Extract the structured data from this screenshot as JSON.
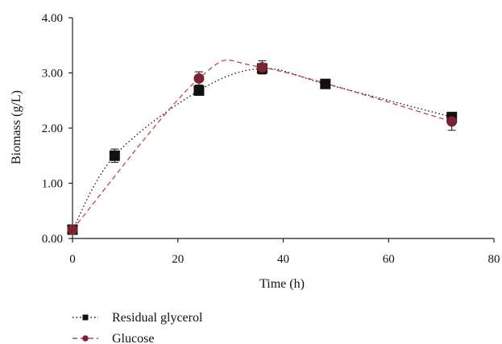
{
  "chart_data": {
    "type": "scatter",
    "xlabel": "Time (h)",
    "ylabel": "Biomass (g/L)",
    "xlim": [
      0,
      80
    ],
    "ylim": [
      0,
      4
    ],
    "x_ticks": [
      "0",
      "20",
      "40",
      "60",
      "80"
    ],
    "y_ticks": [
      "0.00",
      "1.00",
      "2.00",
      "3.00",
      "4.00"
    ],
    "grid": false,
    "legend_position": "bottom-left",
    "series": [
      {
        "name": "Residual glycerol",
        "marker": "square",
        "line_style": "dotted",
        "color": "#111111",
        "x": [
          0,
          8,
          24,
          36,
          48,
          72
        ],
        "y": [
          0.16,
          1.5,
          2.68,
          3.08,
          2.8,
          2.2
        ],
        "error": [
          0.05,
          0.12,
          0.08,
          0.09,
          0.04,
          0.06
        ]
      },
      {
        "name": "Glucose",
        "marker": "circle",
        "line_style": "dashed",
        "color": "#7b2430",
        "x": [
          0,
          24,
          36,
          72
        ],
        "y": [
          0.16,
          2.9,
          3.1,
          2.12
        ],
        "error": [
          0.04,
          0.12,
          0.12,
          0.16
        ]
      }
    ]
  }
}
